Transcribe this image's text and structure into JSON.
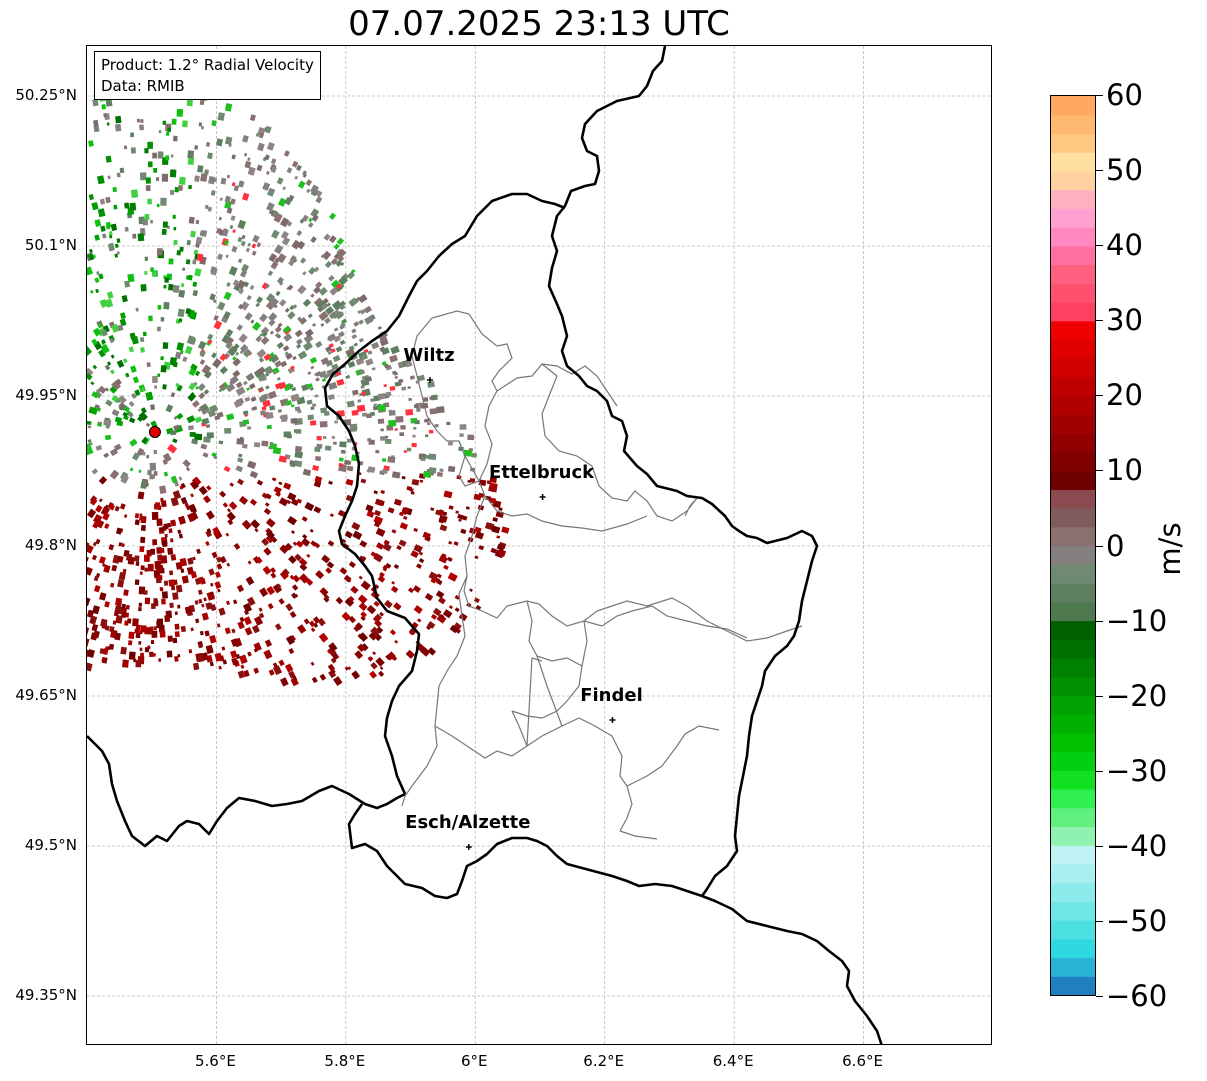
{
  "title": "07.07.2025 23:13 UTC",
  "info_box": {
    "product": "Product: 1.2° Radial Velocity",
    "data": "Data: RMIB"
  },
  "map": {
    "lon_range": [
      5.4,
      6.8
    ],
    "lat_range": [
      49.3,
      50.3
    ],
    "lat_ticks": [
      {
        "value": 50.25,
        "label": "50.25°N"
      },
      {
        "value": 50.1,
        "label": "50.1°N"
      },
      {
        "value": 49.95,
        "label": "49.95°N"
      },
      {
        "value": 49.8,
        "label": "49.8°N"
      },
      {
        "value": 49.65,
        "label": "49.65°N"
      },
      {
        "value": 49.5,
        "label": "49.5°N"
      },
      {
        "value": 49.35,
        "label": "49.35°N"
      }
    ],
    "lon_ticks": [
      {
        "value": 5.6,
        "label": "5.6°E"
      },
      {
        "value": 5.8,
        "label": "5.8°E"
      },
      {
        "value": 6.0,
        "label": "6°E"
      },
      {
        "value": 6.2,
        "label": "6.2°E"
      },
      {
        "value": 6.4,
        "label": "6.4°E"
      },
      {
        "value": 6.6,
        "label": "6.6°E"
      }
    ],
    "grid": true,
    "cities": [
      {
        "name": "Wiltz",
        "lon": 5.93,
        "lat": 49.966
      },
      {
        "name": "Ettelbruck",
        "lon": 6.104,
        "lat": 49.849
      },
      {
        "name": "Findel",
        "lon": 6.212,
        "lat": 49.626
      },
      {
        "name": "Esch/Alzette",
        "lon": 5.99,
        "lat": 49.499
      }
    ],
    "radar_site": {
      "lon": 5.505,
      "lat": 49.914
    }
  },
  "colorbar": {
    "unit": "m/s",
    "min": -60,
    "max": 60,
    "ticks": [
      {
        "value": 60,
        "label": "60"
      },
      {
        "value": 50,
        "label": "50"
      },
      {
        "value": 40,
        "label": "40"
      },
      {
        "value": 30,
        "label": "30"
      },
      {
        "value": 20,
        "label": "20"
      },
      {
        "value": 10,
        "label": "10"
      },
      {
        "value": 0,
        "label": "0"
      },
      {
        "value": -10,
        "label": "−10"
      },
      {
        "value": -20,
        "label": "−20"
      },
      {
        "value": -30,
        "label": "−30"
      },
      {
        "value": -40,
        "label": "−40"
      },
      {
        "value": -50,
        "label": "−50"
      },
      {
        "value": -60,
        "label": "−60"
      }
    ],
    "colors": [
      "#1f7fbf",
      "#29b3d6",
      "#2ed9e0",
      "#4de0e3",
      "#6ee6e6",
      "#8cebeb",
      "#a8f0f0",
      "#bff2f2",
      "#90f2b0",
      "#60f080",
      "#30f050",
      "#10e020",
      "#00d010",
      "#00c000",
      "#00b000",
      "#00a000",
      "#009000",
      "#008000",
      "#007000",
      "#006000",
      "#4f7a50",
      "#5f8060",
      "#6f8a70",
      "#858080",
      "#8a7070",
      "#7f5a5f",
      "#8a4a50",
      "#700000",
      "#800000",
      "#900000",
      "#a00000",
      "#b00000",
      "#c00000",
      "#d00000",
      "#e00000",
      "#f00000",
      "#ff4060",
      "#ff5070",
      "#ff6080",
      "#ff70a0",
      "#ff88c0",
      "#ffa0d0",
      "#ffb0c0",
      "#ffd0a0",
      "#ffe0a0",
      "#ffc880",
      "#ffb870",
      "#ffa860"
    ]
  }
}
